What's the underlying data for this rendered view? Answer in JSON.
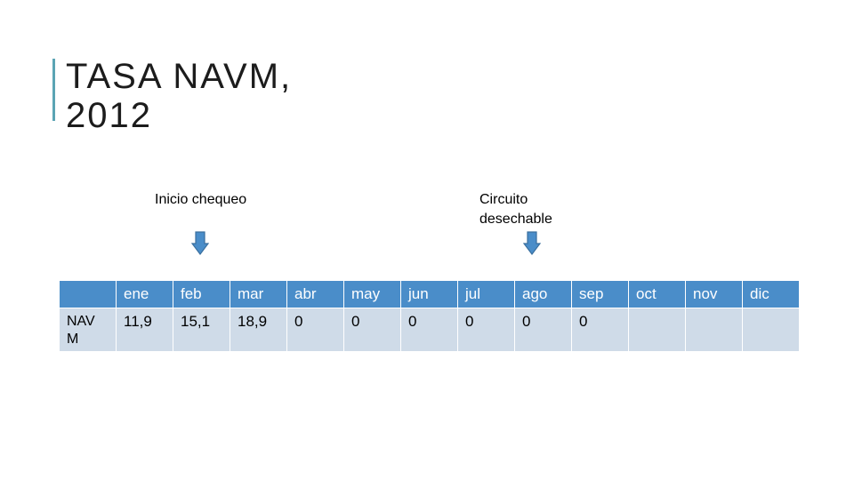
{
  "slide": {
    "title_line1": "TASA NAVM,",
    "title_line2": "2012",
    "accent_color": "#5ba4b4"
  },
  "annotations": {
    "inicio": "Inicio chequeo",
    "circuito_line1": "Circuito",
    "circuito_line2": "desechable",
    "arrow_color": "#4a8dc9"
  },
  "table": {
    "header_color": "#4a8dc9",
    "cell_color": "#cfdbe8",
    "corner": "",
    "months": [
      "ene",
      "feb",
      "mar",
      "abr",
      "may",
      "jun",
      "jul",
      "ago",
      "sep",
      "oct",
      "nov",
      "dic"
    ],
    "row_label": "NAV M",
    "values": [
      "11,9",
      "15,1",
      "18,9",
      "0",
      "0",
      "0",
      "0",
      "0",
      "0",
      "",
      "",
      ""
    ]
  }
}
